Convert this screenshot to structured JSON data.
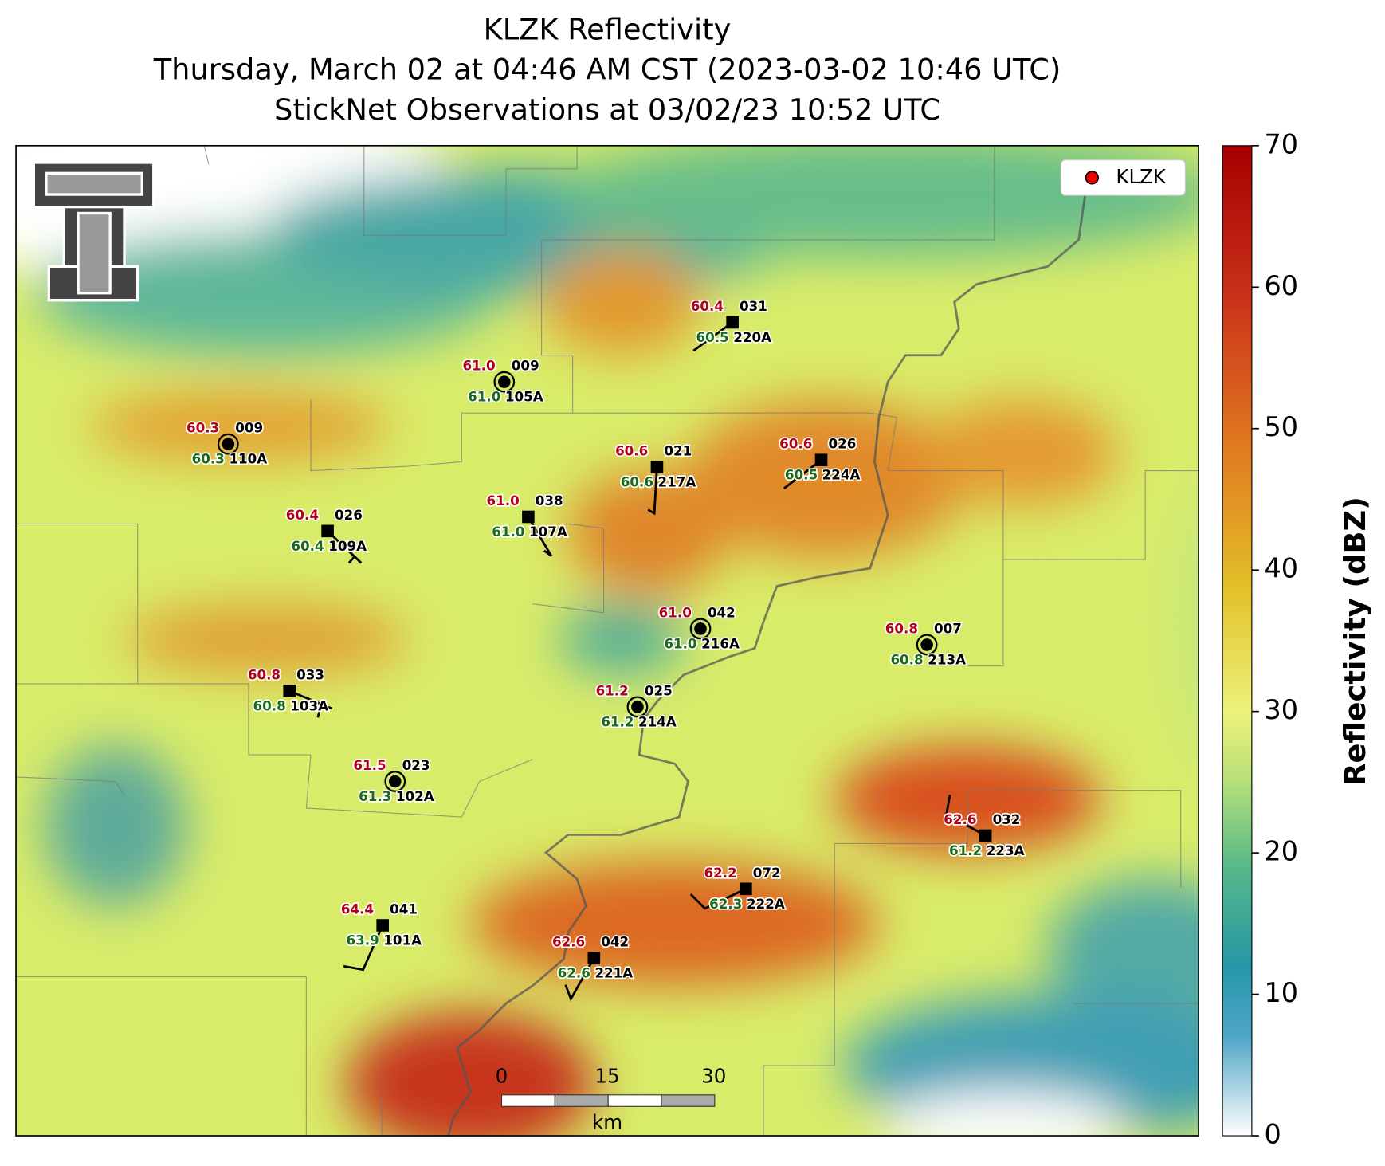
{
  "header": {
    "title": "KLZK Reflectivity",
    "subtitle": "Thursday, March 02 at 04:46 AM CST (2023-03-02 10:46 UTC)",
    "observations": "StickNet Observations at 03/02/23 10:52 UTC"
  },
  "legend": {
    "label": "KLZK"
  },
  "colorbar": {
    "label": "Reflectivity (dBZ)",
    "range": [
      0,
      70
    ],
    "ticks": [
      0,
      10,
      20,
      30,
      40,
      50,
      60,
      70
    ]
  },
  "scale_bar": {
    "ticks": [
      "0",
      "15",
      "30"
    ],
    "unit": "km"
  },
  "stations": [
    {
      "id": "110A",
      "temperature": "60.3",
      "dewpoint": "60.3",
      "value": "009"
    },
    {
      "id": "105A",
      "temperature": "61.0",
      "dewpoint": "61.0",
      "value": "009"
    },
    {
      "id": "220A",
      "temperature": "60.4",
      "dewpoint": "60.5",
      "value": "031"
    },
    {
      "id": "217A",
      "temperature": "60.6",
      "dewpoint": "60.6",
      "value": "021"
    },
    {
      "id": "224A",
      "temperature": "60.6",
      "dewpoint": "60.5",
      "value": "026"
    },
    {
      "id": "109A",
      "temperature": "60.4",
      "dewpoint": "60.4",
      "value": "026"
    },
    {
      "id": "107A",
      "temperature": "61.0",
      "dewpoint": "61.0",
      "value": "038"
    },
    {
      "id": "216A",
      "temperature": "61.0",
      "dewpoint": "61.0",
      "value": "042"
    },
    {
      "id": "213A",
      "temperature": "60.8",
      "dewpoint": "60.8",
      "value": "007"
    },
    {
      "id": "103A",
      "temperature": "60.8",
      "dewpoint": "60.8",
      "value": "033"
    },
    {
      "id": "214A",
      "temperature": "61.2",
      "dewpoint": "61.2",
      "value": "025"
    },
    {
      "id": "102A",
      "temperature": "61.5",
      "dewpoint": "61.3",
      "value": "023"
    },
    {
      "id": "223A",
      "temperature": "62.6",
      "dewpoint": "61.2",
      "value": "032"
    },
    {
      "id": "222A",
      "temperature": "62.2",
      "dewpoint": "62.3",
      "value": "072"
    },
    {
      "id": "101A",
      "temperature": "64.4",
      "dewpoint": "63.9",
      "value": "041"
    },
    {
      "id": "221A",
      "temperature": "62.6",
      "dewpoint": "62.6",
      "value": "042"
    }
  ]
}
